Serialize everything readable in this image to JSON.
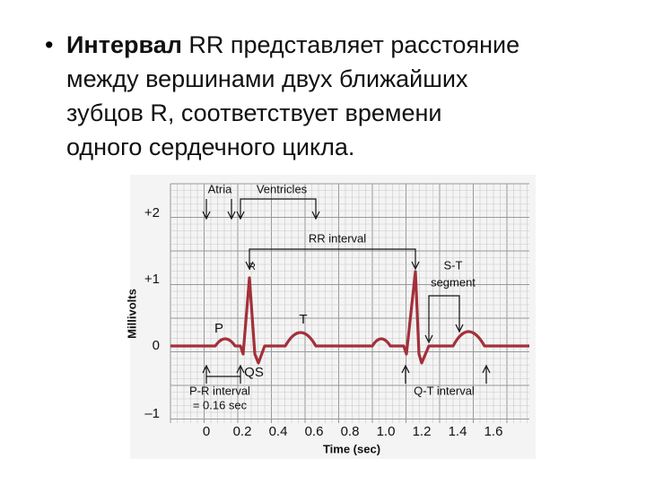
{
  "slide": {
    "bullet": "•",
    "lines": [
      {
        "bold": "Интервал",
        "text": " RR представляет расстояние"
      },
      {
        "text": "между вершинами двух ближайших"
      },
      {
        "text": "зубцов R, соответствует времени"
      },
      {
        "text": "одного сердечного цикла."
      }
    ]
  },
  "figure": {
    "y_axis_label": "Millivolts",
    "x_axis_label": "Time (sec)",
    "y_tick_labels": [
      "+2",
      "+1",
      "0",
      "–1"
    ],
    "x_tick_labels": [
      "0",
      "0.2",
      "0.4",
      "0.6",
      "0.8",
      "1.0",
      "1.2",
      "1.4",
      "1.6"
    ],
    "annotations": {
      "atria": "Atria",
      "ventricles": "Ventricles",
      "rr_interval": "RR interval",
      "r": "R",
      "st": "S-T",
      "segment": "segment",
      "p": "P",
      "t": "T",
      "qs": "QS",
      "pr_interval": "P-R interval",
      "pr_value": "= 0.16 sec",
      "qt_interval": "Q-T interval"
    }
  }
}
